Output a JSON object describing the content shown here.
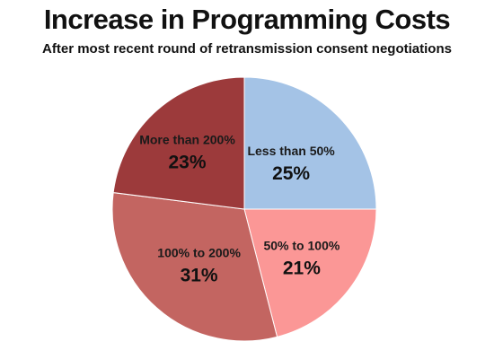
{
  "chart_data": {
    "type": "pie",
    "title": "Increase in Programming Costs",
    "subtitle": "After most recent round of retransmission consent negotiations",
    "slices": [
      {
        "label": "Less than 50%",
        "value": 25,
        "display": "25%",
        "color": "#a4c3e6"
      },
      {
        "label": "50% to 100%",
        "value": 21,
        "display": "21%",
        "color": "#fb9796"
      },
      {
        "label": "100% to 200%",
        "value": 31,
        "display": "31%",
        "color": "#c36561"
      },
      {
        "label": "More than 200%",
        "value": 23,
        "display": "23%",
        "color": "#9c3a3b"
      }
    ],
    "start_angle": "12 o'clock",
    "direction": "clockwise",
    "legend": "none"
  }
}
